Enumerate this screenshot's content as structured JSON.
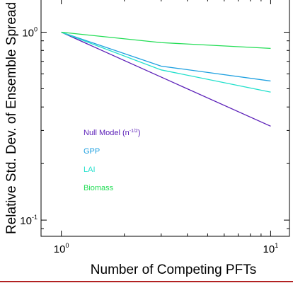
{
  "chart_data": {
    "type": "line",
    "xlabel": "Number of Competing PFTs",
    "ylabel": "Relative Std. Dev. of Ensemble Spread",
    "x_scale": "log",
    "y_scale": "log",
    "xlim": [
      0.8,
      12.3
    ],
    "ylim": [
      0.082,
      1.51
    ],
    "x_ticks": [
      {
        "value": 1,
        "base": "10",
        "exp": "0"
      },
      {
        "value": 10,
        "base": "10",
        "exp": "1"
      }
    ],
    "y_ticks": [
      {
        "value": 0.1,
        "base": "10",
        "exp": "-1"
      },
      {
        "value": 1,
        "base": "10",
        "exp": "0"
      }
    ],
    "grid": false,
    "legend_position": "inside-lower-left",
    "series": [
      {
        "name": "Null Model",
        "name_exp": "(n",
        "name_sup": "-1/2",
        "name_close": ")",
        "color": "#5b1fb8",
        "x": [
          1,
          3,
          10
        ],
        "y": [
          1.0,
          0.577,
          0.316
        ]
      },
      {
        "name": "GPP",
        "color": "#1ea0e0",
        "x": [
          1,
          3,
          10
        ],
        "y": [
          1.0,
          0.66,
          0.55
        ]
      },
      {
        "name": "LAI",
        "color": "#22e0cc",
        "x": [
          1,
          3,
          10
        ],
        "y": [
          1.0,
          0.63,
          0.48
        ]
      },
      {
        "name": "Biomass",
        "color": "#22dd55",
        "x": [
          1,
          3,
          10
        ],
        "y": [
          1.0,
          0.88,
          0.82
        ]
      }
    ]
  },
  "colors": {
    "bottom_rule": "#b22222"
  }
}
